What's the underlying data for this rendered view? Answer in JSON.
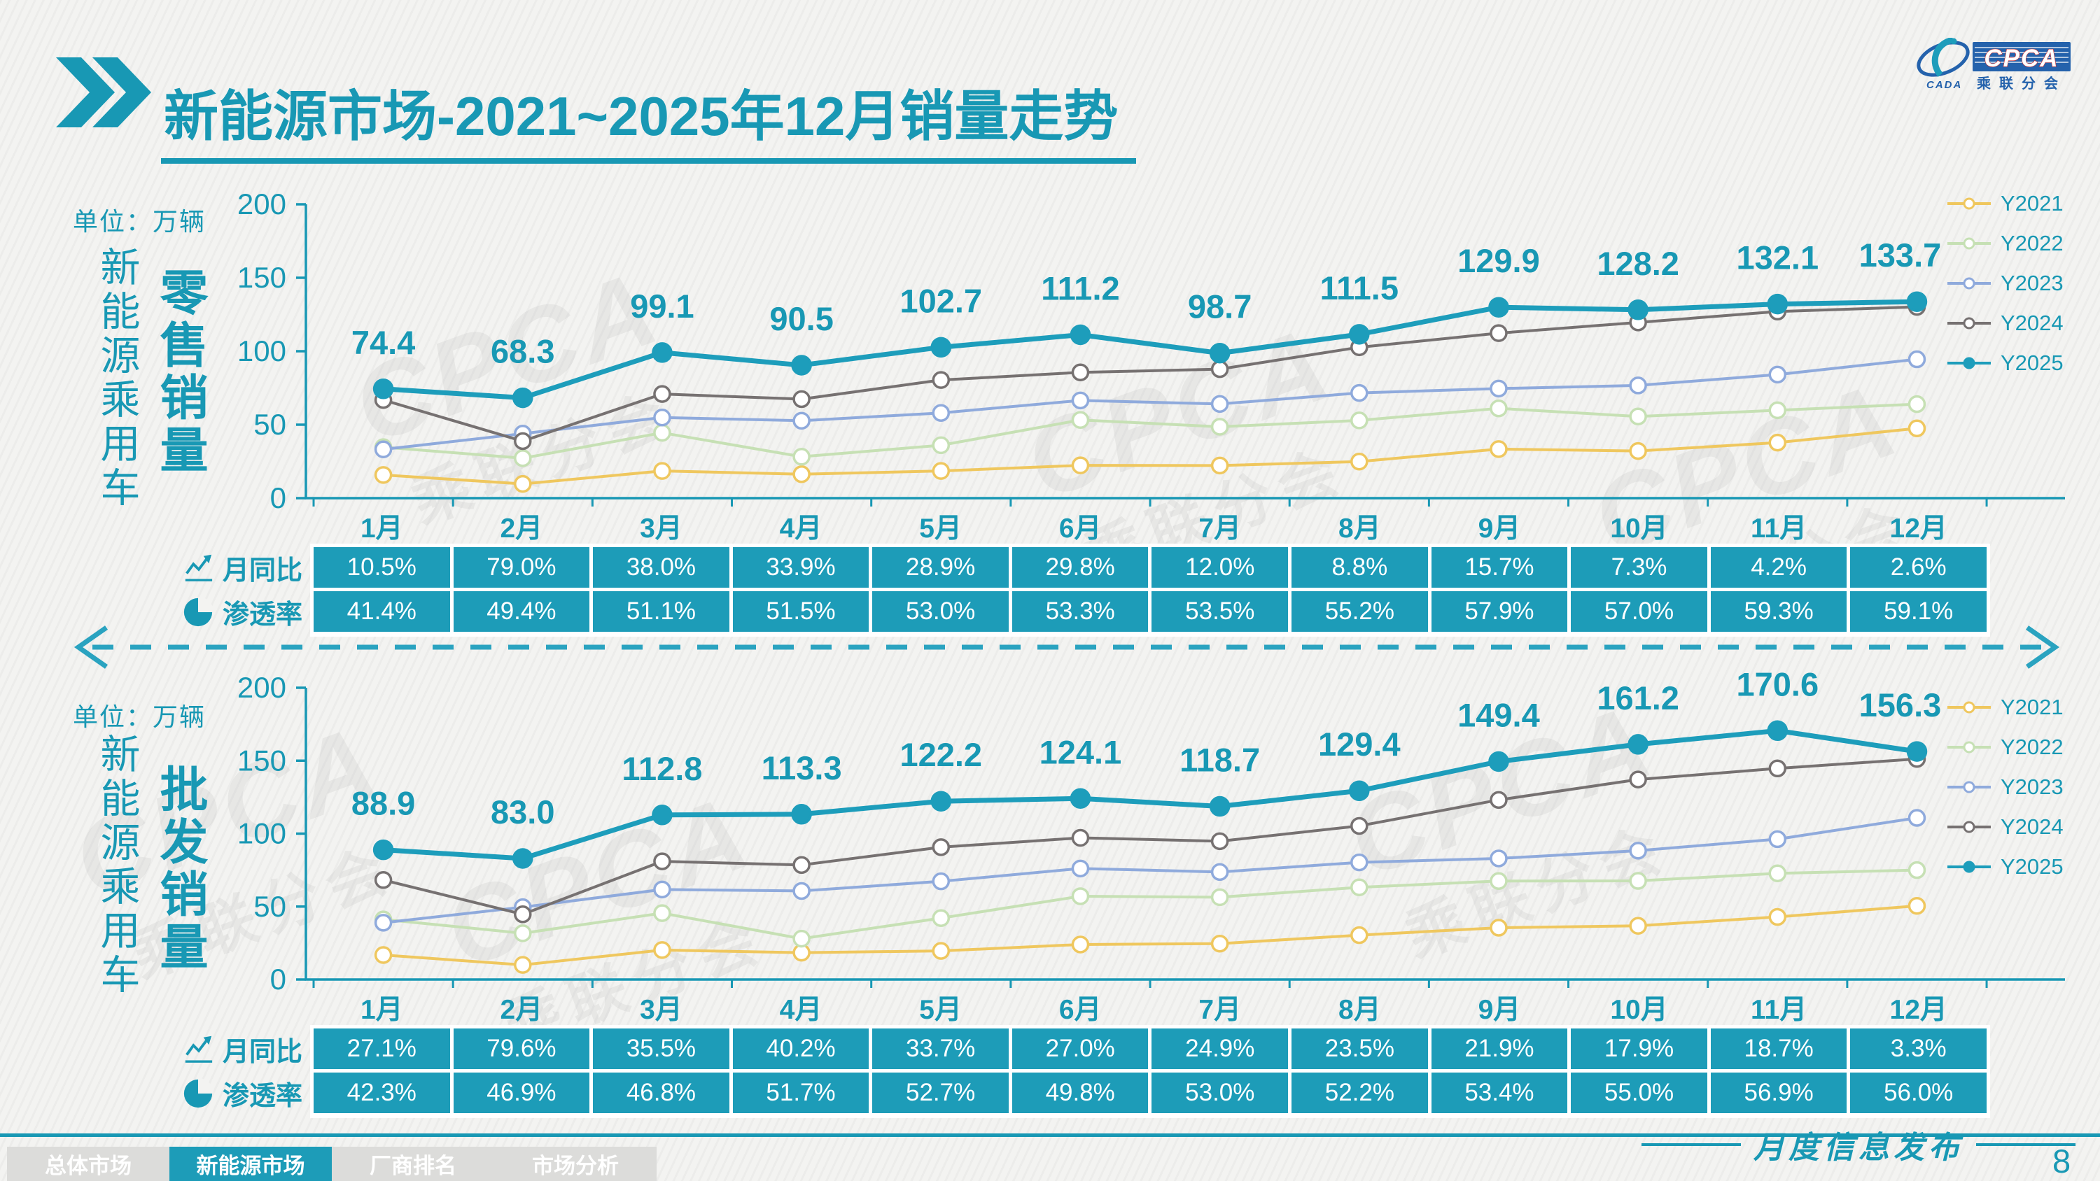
{
  "theme": {
    "accent": "#1898B4",
    "table_cell": "#1D9CB8",
    "divider": "#2AA3C0",
    "logo_blue": "#2462AC"
  },
  "header": {
    "title_strong": "新能源市场",
    "title_rest": "-2021~2025年12月销量走势"
  },
  "logo": {
    "cpca": "CPCA",
    "cn": "乘联分会",
    "cada": "CADA"
  },
  "watermark": {
    "main": "CPCA",
    "sub": "乘联分会"
  },
  "legend": {
    "position": "right",
    "series": [
      {
        "name": "Y2021",
        "color": "#EFC75E",
        "marker": "open"
      },
      {
        "name": "Y2022",
        "color": "#C6E0B4",
        "marker": "open"
      },
      {
        "name": "Y2023",
        "color": "#8FAADC",
        "marker": "open"
      },
      {
        "name": "Y2024",
        "color": "#767171",
        "marker": "open"
      },
      {
        "name": "Y2025",
        "color": "#1D9DBB",
        "marker": "filled"
      }
    ]
  },
  "chart_data": [
    {
      "type": "line",
      "title": "新能源乘用车零售销量",
      "unit": "万辆",
      "categories": [
        "1月",
        "2月",
        "3月",
        "4月",
        "5月",
        "6月",
        "7月",
        "8月",
        "9月",
        "10月",
        "11月",
        "12月"
      ],
      "ylim": [
        0,
        200
      ],
      "yticks": [
        0,
        50,
        100,
        150,
        200
      ],
      "grid": false,
      "legend_position": "right",
      "labeled_series": "Y2025",
      "series": [
        {
          "name": "Y2021",
          "values": [
            15.8,
            9.7,
            18.5,
            16.3,
            18.5,
            22.3,
            22.2,
            24.9,
            33.4,
            32.1,
            37.8,
            47.5
          ]
        },
        {
          "name": "Y2022",
          "values": [
            34.7,
            27.2,
            44.5,
            28.2,
            36.0,
            53.2,
            48.6,
            52.9,
            61.1,
            55.6,
            59.8,
            64.0
          ]
        },
        {
          "name": "Y2023",
          "values": [
            33.2,
            43.9,
            54.9,
            52.7,
            58.0,
            66.5,
            64.1,
            71.6,
            74.6,
            76.7,
            84.1,
            94.5
          ]
        },
        {
          "name": "Y2024",
          "values": [
            66.8,
            38.8,
            70.9,
            67.4,
            80.4,
            85.6,
            87.8,
            102.7,
            112.3,
            119.6,
            127.0,
            130.2
          ]
        },
        {
          "name": "Y2025",
          "values": [
            74.4,
            68.3,
            99.1,
            90.5,
            102.7,
            111.2,
            98.7,
            111.5,
            129.9,
            128.2,
            132.1,
            133.7
          ]
        }
      ]
    },
    {
      "type": "line",
      "title": "新能源乘用车批发销量",
      "unit": "万辆",
      "categories": [
        "1月",
        "2月",
        "3月",
        "4月",
        "5月",
        "6月",
        "7月",
        "8月",
        "9月",
        "10月",
        "11月",
        "12月"
      ],
      "ylim": [
        0,
        200
      ],
      "yticks": [
        0,
        50,
        100,
        150,
        200
      ],
      "grid": false,
      "legend_position": "right",
      "labeled_series": "Y2025",
      "series": [
        {
          "name": "Y2021",
          "values": [
            16.8,
            10.0,
            20.2,
            18.4,
            19.6,
            24.0,
            24.6,
            30.4,
            35.5,
            36.8,
            42.9,
            50.5
          ]
        },
        {
          "name": "Y2022",
          "values": [
            41.2,
            31.7,
            45.5,
            28.0,
            42.1,
            57.1,
            56.4,
            63.2,
            67.5,
            67.6,
            72.8,
            75.0
          ]
        },
        {
          "name": "Y2023",
          "values": [
            38.9,
            49.6,
            61.7,
            60.7,
            67.3,
            76.1,
            73.7,
            80.3,
            83.0,
            88.3,
            96.2,
            110.8
          ]
        },
        {
          "name": "Y2024",
          "values": [
            68.2,
            44.7,
            81.0,
            78.5,
            90.7,
            97.1,
            94.8,
            105.3,
            123.1,
            137.1,
            144.7,
            151.2
          ]
        },
        {
          "name": "Y2025",
          "values": [
            88.9,
            83.0,
            112.8,
            113.3,
            122.2,
            124.1,
            118.7,
            129.4,
            149.4,
            161.2,
            170.6,
            156.3
          ]
        }
      ]
    }
  ],
  "sections": [
    {
      "unit_label": "单位：万辆",
      "group_label": "新能源乘用车",
      "metric_label": "零售销量",
      "rows": [
        {
          "icon": "trend-icon",
          "label": "月同比",
          "values": [
            "10.5%",
            "79.0%",
            "38.0%",
            "33.9%",
            "28.9%",
            "29.8%",
            "12.0%",
            "8.8%",
            "15.7%",
            "7.3%",
            "4.2%",
            "2.6%"
          ]
        },
        {
          "icon": "pie-icon",
          "label": "渗透率",
          "values": [
            "41.4%",
            "49.4%",
            "51.1%",
            "51.5%",
            "53.0%",
            "53.3%",
            "53.5%",
            "55.2%",
            "57.9%",
            "57.0%",
            "59.3%",
            "59.1%"
          ]
        }
      ]
    },
    {
      "unit_label": "单位：万辆",
      "group_label": "新能源乘用车",
      "metric_label": "批发销量",
      "rows": [
        {
          "icon": "trend-icon",
          "label": "月同比",
          "values": [
            "27.1%",
            "79.6%",
            "35.5%",
            "40.2%",
            "33.7%",
            "27.0%",
            "24.9%",
            "23.5%",
            "21.9%",
            "17.9%",
            "18.7%",
            "3.3%"
          ]
        },
        {
          "icon": "pie-icon",
          "label": "渗透率",
          "values": [
            "42.3%",
            "46.9%",
            "46.8%",
            "51.7%",
            "52.7%",
            "49.8%",
            "53.0%",
            "52.2%",
            "53.4%",
            "55.0%",
            "56.9%",
            "56.0%"
          ]
        }
      ]
    }
  ],
  "footer": {
    "tabs": [
      {
        "label": "总体市场",
        "active": false
      },
      {
        "label": "新能源市场",
        "active": true
      },
      {
        "label": "厂商排名",
        "active": false
      },
      {
        "label": "市场分析",
        "active": false
      }
    ],
    "caption": "月度信息发布",
    "page": "8"
  }
}
